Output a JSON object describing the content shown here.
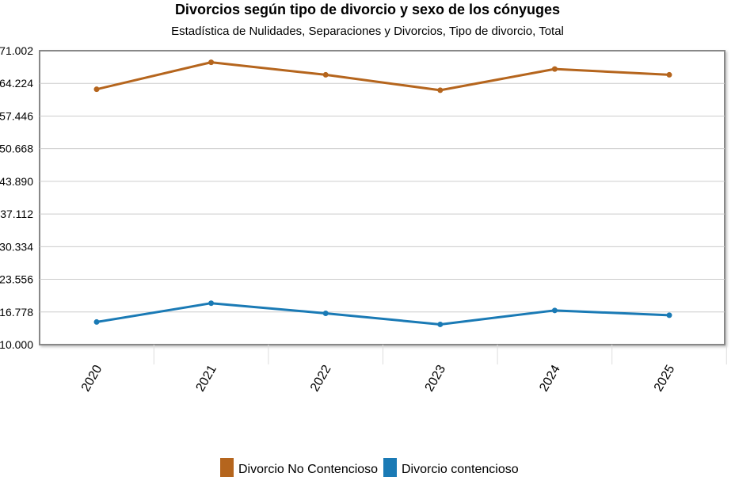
{
  "chart_data": {
    "type": "line",
    "title": "Divorcios según tipo de divorcio y sexo de los cónyuges",
    "subtitle": "Estadística de Nulidades, Separaciones y Divorcios, Tipo de divorcio, Total",
    "categories": [
      "2020",
      "2021",
      "2022",
      "2023",
      "2024",
      "2025"
    ],
    "y_ticks": [
      "10.000",
      "16.778",
      "23.556",
      "30.334",
      "37.112",
      "43.890",
      "50.668",
      "57.446",
      "64.224",
      "71.002"
    ],
    "ylim": [
      10000,
      71002
    ],
    "grid": true,
    "legend_position": "bottom",
    "series": [
      {
        "name": "Divorcio No Contencioso",
        "color": "#b5651d",
        "values": [
          63000,
          68600,
          66000,
          62800,
          67200,
          66000
        ]
      },
      {
        "name": "Divorcio contencioso",
        "color": "#1a7ab5",
        "values": [
          14700,
          18600,
          16500,
          14200,
          17100,
          16100
        ]
      }
    ]
  }
}
